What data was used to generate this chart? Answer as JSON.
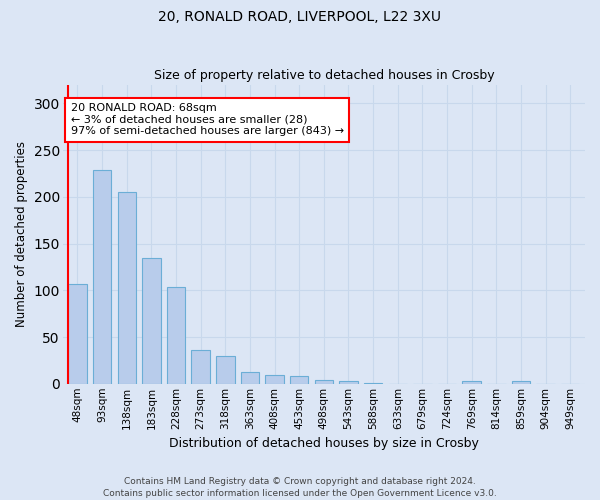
{
  "title1": "20, RONALD ROAD, LIVERPOOL, L22 3XU",
  "title2": "Size of property relative to detached houses in Crosby",
  "xlabel": "Distribution of detached houses by size in Crosby",
  "ylabel": "Number of detached properties",
  "categories": [
    "48sqm",
    "93sqm",
    "138sqm",
    "183sqm",
    "228sqm",
    "273sqm",
    "318sqm",
    "363sqm",
    "408sqm",
    "453sqm",
    "498sqm",
    "543sqm",
    "588sqm",
    "633sqm",
    "679sqm",
    "724sqm",
    "769sqm",
    "814sqm",
    "859sqm",
    "904sqm",
    "949sqm"
  ],
  "values": [
    107,
    229,
    205,
    135,
    104,
    36,
    30,
    13,
    9,
    8,
    4,
    3,
    1,
    0,
    0,
    0,
    3,
    0,
    3,
    0,
    0
  ],
  "bar_color": "#b8cceb",
  "bar_edge_color": "#6baed6",
  "grid_color": "#c8d8ec",
  "background_color": "#dce6f5",
  "annotation_text": "20 RONALD ROAD: 68sqm\n← 3% of detached houses are smaller (28)\n97% of semi-detached houses are larger (843) →",
  "annotation_box_color": "white",
  "annotation_box_edge": "red",
  "footnote": "Contains HM Land Registry data © Crown copyright and database right 2024.\nContains public sector information licensed under the Open Government Licence v3.0.",
  "ylim": [
    0,
    320
  ],
  "yticks": [
    0,
    50,
    100,
    150,
    200,
    250,
    300
  ]
}
